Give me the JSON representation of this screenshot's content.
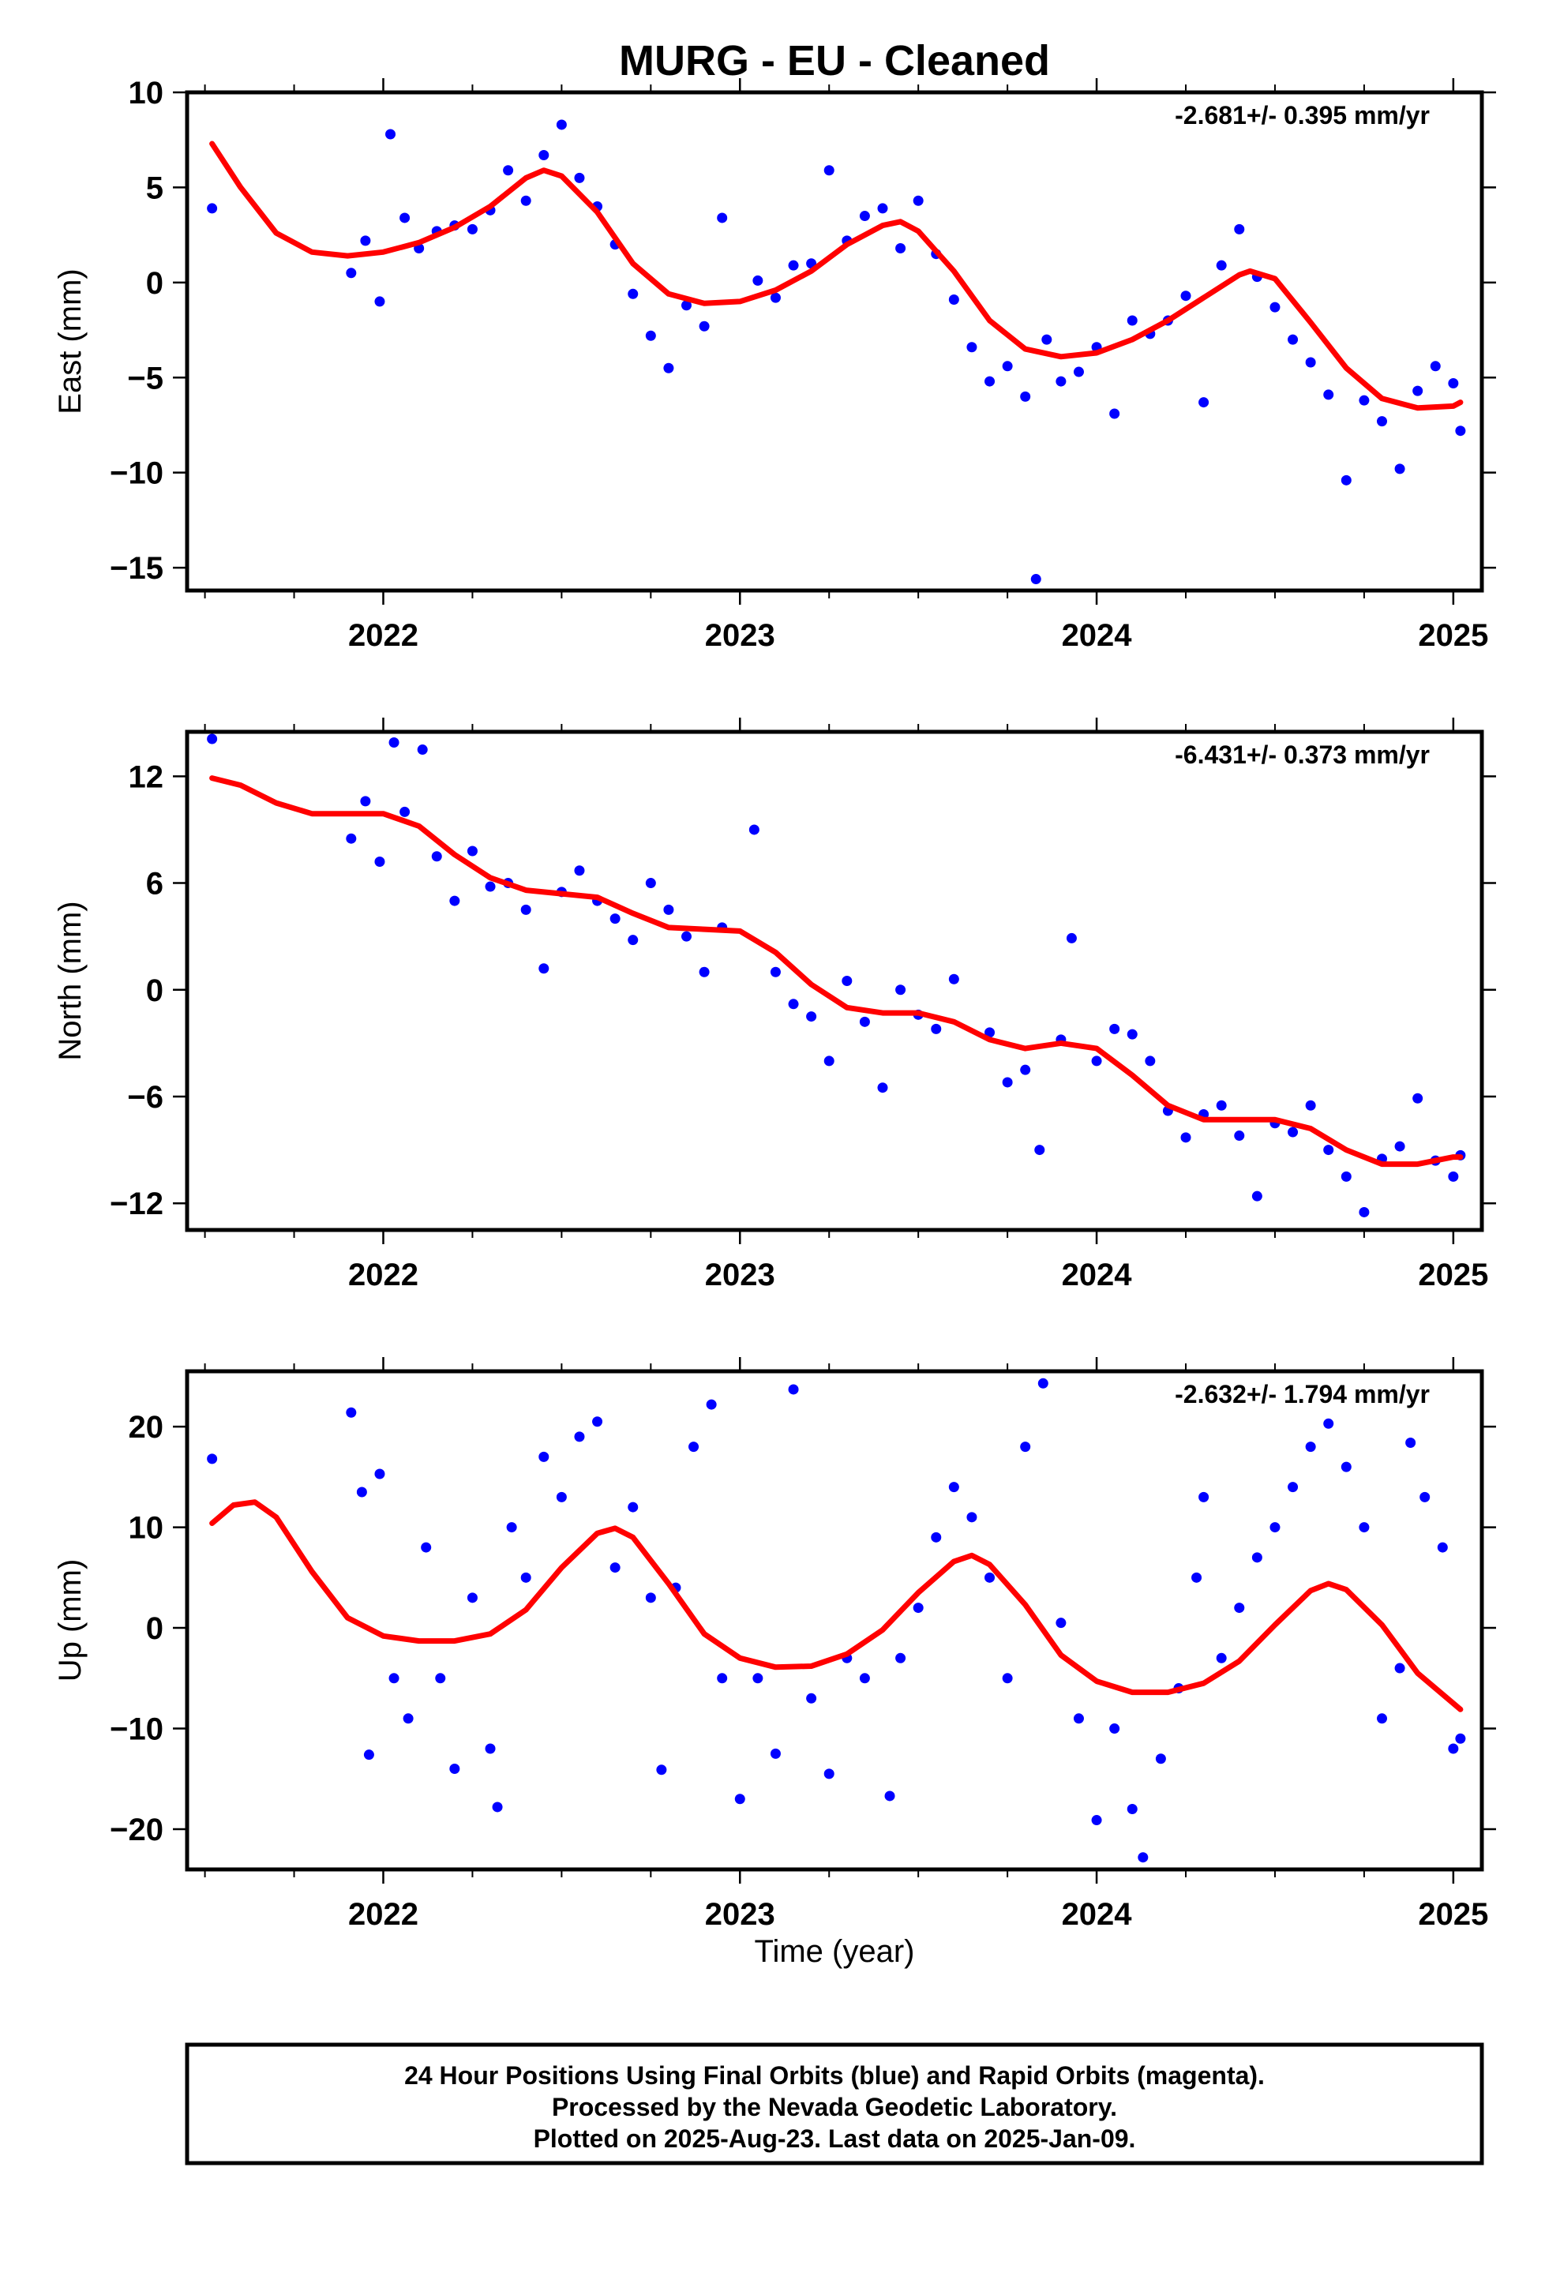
{
  "title": "MURG  - EU - Cleaned",
  "xlabel": "Time (year)",
  "footer": [
    "24 Hour Positions Using Final Orbits (blue) and Rapid Orbits (magenta).",
    "Processed by the Nevada Geodetic Laboratory.",
    "Plotted on 2025-Aug-23. Last data on 2025-Jan-09."
  ],
  "colors": {
    "points": "#0000ff",
    "fit": "#ff0000",
    "frame": "#000000"
  },
  "chart_data": [
    {
      "type": "scatter",
      "name": "east",
      "ylabel": "East (mm)",
      "rate": "-2.681+/- 0.395 mm/yr",
      "xlim": [
        2021.45,
        2025.08
      ],
      "ylim": [
        -16.2,
        10
      ],
      "yticks": [
        10,
        5,
        0,
        -5,
        -10,
        -15
      ],
      "xticks": [
        2022,
        2023,
        2024,
        2025
      ],
      "points": [
        [
          2021.52,
          3.9
        ],
        [
          2021.91,
          0.5
        ],
        [
          2021.95,
          2.2
        ],
        [
          2021.99,
          -1.0
        ],
        [
          2022.02,
          7.8
        ],
        [
          2022.06,
          3.4
        ],
        [
          2022.1,
          1.8
        ],
        [
          2022.15,
          2.7
        ],
        [
          2022.2,
          3.0
        ],
        [
          2022.25,
          2.8
        ],
        [
          2022.3,
          3.8
        ],
        [
          2022.35,
          5.9
        ],
        [
          2022.4,
          4.3
        ],
        [
          2022.45,
          6.7
        ],
        [
          2022.5,
          8.3
        ],
        [
          2022.55,
          5.5
        ],
        [
          2022.6,
          4.0
        ],
        [
          2022.65,
          2.0
        ],
        [
          2022.7,
          -0.6
        ],
        [
          2022.75,
          -2.8
        ],
        [
          2022.8,
          -4.5
        ],
        [
          2022.85,
          -1.2
        ],
        [
          2022.9,
          -2.3
        ],
        [
          2022.95,
          3.4
        ],
        [
          2023.05,
          0.1
        ],
        [
          2023.1,
          -0.8
        ],
        [
          2023.15,
          0.9
        ],
        [
          2023.2,
          1.0
        ],
        [
          2023.25,
          5.9
        ],
        [
          2023.3,
          2.2
        ],
        [
          2023.35,
          3.5
        ],
        [
          2023.4,
          3.9
        ],
        [
          2023.45,
          1.8
        ],
        [
          2023.5,
          4.3
        ],
        [
          2023.55,
          1.5
        ],
        [
          2023.6,
          -0.9
        ],
        [
          2023.65,
          -3.4
        ],
        [
          2023.7,
          -5.2
        ],
        [
          2023.75,
          -4.4
        ],
        [
          2023.8,
          -6.0
        ],
        [
          2023.83,
          -15.6
        ],
        [
          2023.86,
          -3.0
        ],
        [
          2023.9,
          -5.2
        ],
        [
          2023.95,
          -4.7
        ],
        [
          2024.0,
          -3.4
        ],
        [
          2024.05,
          -6.9
        ],
        [
          2024.1,
          -2.0
        ],
        [
          2024.15,
          -2.7
        ],
        [
          2024.2,
          -2.0
        ],
        [
          2024.25,
          -0.7
        ],
        [
          2024.3,
          -6.3
        ],
        [
          2024.35,
          0.9
        ],
        [
          2024.4,
          2.8
        ],
        [
          2024.45,
          0.3
        ],
        [
          2024.5,
          -1.3
        ],
        [
          2024.55,
          -3.0
        ],
        [
          2024.6,
          -4.2
        ],
        [
          2024.65,
          -5.9
        ],
        [
          2024.7,
          -10.4
        ],
        [
          2024.75,
          -6.2
        ],
        [
          2024.8,
          -7.3
        ],
        [
          2024.85,
          -9.8
        ],
        [
          2024.9,
          -5.7
        ],
        [
          2024.95,
          -4.4
        ],
        [
          2025.0,
          -5.3
        ],
        [
          2025.02,
          -7.8
        ]
      ],
      "fit": [
        [
          2021.52,
          7.3
        ],
        [
          2021.6,
          5.0
        ],
        [
          2021.7,
          2.6
        ],
        [
          2021.8,
          1.6
        ],
        [
          2021.9,
          1.4
        ],
        [
          2022.0,
          1.6
        ],
        [
          2022.1,
          2.1
        ],
        [
          2022.2,
          2.9
        ],
        [
          2022.3,
          4.0
        ],
        [
          2022.4,
          5.5
        ],
        [
          2022.45,
          5.9
        ],
        [
          2022.5,
          5.6
        ],
        [
          2022.6,
          3.7
        ],
        [
          2022.7,
          1.0
        ],
        [
          2022.8,
          -0.6
        ],
        [
          2022.9,
          -1.1
        ],
        [
          2023.0,
          -1.0
        ],
        [
          2023.1,
          -0.4
        ],
        [
          2023.2,
          0.6
        ],
        [
          2023.3,
          2.0
        ],
        [
          2023.4,
          3.0
        ],
        [
          2023.45,
          3.2
        ],
        [
          2023.5,
          2.7
        ],
        [
          2023.6,
          0.6
        ],
        [
          2023.7,
          -2.0
        ],
        [
          2023.8,
          -3.5
        ],
        [
          2023.9,
          -3.9
        ],
        [
          2024.0,
          -3.7
        ],
        [
          2024.1,
          -3.0
        ],
        [
          2024.2,
          -2.0
        ],
        [
          2024.3,
          -0.8
        ],
        [
          2024.4,
          0.4
        ],
        [
          2024.43,
          0.6
        ],
        [
          2024.5,
          0.2
        ],
        [
          2024.6,
          -2.1
        ],
        [
          2024.7,
          -4.5
        ],
        [
          2024.8,
          -6.1
        ],
        [
          2024.9,
          -6.6
        ],
        [
          2025.0,
          -6.5
        ],
        [
          2025.02,
          -6.3
        ]
      ]
    },
    {
      "type": "scatter",
      "name": "north",
      "ylabel": "North (mm)",
      "rate": "-6.431+/- 0.373 mm/yr",
      "xlim": [
        2021.45,
        2025.08
      ],
      "ylim": [
        -13.5,
        14.5
      ],
      "yticks": [
        12,
        6,
        0,
        -6,
        -12
      ],
      "xticks": [
        2022,
        2023,
        2024,
        2025
      ],
      "points": [
        [
          2021.52,
          14.1
        ],
        [
          2021.91,
          8.5
        ],
        [
          2021.95,
          10.6
        ],
        [
          2021.99,
          7.2
        ],
        [
          2022.03,
          13.9
        ],
        [
          2022.06,
          10.0
        ],
        [
          2022.11,
          13.5
        ],
        [
          2022.15,
          7.5
        ],
        [
          2022.2,
          5.0
        ],
        [
          2022.25,
          7.8
        ],
        [
          2022.3,
          5.8
        ],
        [
          2022.35,
          6.0
        ],
        [
          2022.4,
          4.5
        ],
        [
          2022.45,
          1.2
        ],
        [
          2022.5,
          5.5
        ],
        [
          2022.55,
          6.7
        ],
        [
          2022.6,
          5.0
        ],
        [
          2022.65,
          4.0
        ],
        [
          2022.7,
          2.8
        ],
        [
          2022.75,
          6.0
        ],
        [
          2022.8,
          4.5
        ],
        [
          2022.85,
          3.0
        ],
        [
          2022.9,
          1.0
        ],
        [
          2022.95,
          3.5
        ],
        [
          2023.04,
          9.0
        ],
        [
          2023.1,
          1.0
        ],
        [
          2023.15,
          -0.8
        ],
        [
          2023.2,
          -1.5
        ],
        [
          2023.25,
          -4.0
        ],
        [
          2023.3,
          0.5
        ],
        [
          2023.35,
          -1.8
        ],
        [
          2023.4,
          -5.5
        ],
        [
          2023.45,
          0.0
        ],
        [
          2023.5,
          -1.4
        ],
        [
          2023.55,
          -2.2
        ],
        [
          2023.6,
          0.6
        ],
        [
          2023.7,
          -2.4
        ],
        [
          2023.75,
          -5.2
        ],
        [
          2023.8,
          -4.5
        ],
        [
          2023.84,
          -9.0
        ],
        [
          2023.9,
          -2.8
        ],
        [
          2023.93,
          2.9
        ],
        [
          2024.0,
          -4.0
        ],
        [
          2024.05,
          -2.2
        ],
        [
          2024.1,
          -2.5
        ],
        [
          2024.15,
          -4.0
        ],
        [
          2024.2,
          -6.8
        ],
        [
          2024.25,
          -8.3
        ],
        [
          2024.3,
          -7.0
        ],
        [
          2024.35,
          -6.5
        ],
        [
          2024.4,
          -8.2
        ],
        [
          2024.45,
          -11.6
        ],
        [
          2024.5,
          -7.5
        ],
        [
          2024.55,
          -8.0
        ],
        [
          2024.6,
          -6.5
        ],
        [
          2024.65,
          -9.0
        ],
        [
          2024.7,
          -10.5
        ],
        [
          2024.75,
          -12.5
        ],
        [
          2024.8,
          -9.5
        ],
        [
          2024.85,
          -8.8
        ],
        [
          2024.9,
          -6.1
        ],
        [
          2024.95,
          -9.6
        ],
        [
          2025.0,
          -10.5
        ],
        [
          2025.02,
          -9.3
        ]
      ],
      "fit": [
        [
          2021.52,
          11.9
        ],
        [
          2021.6,
          11.5
        ],
        [
          2021.7,
          10.5
        ],
        [
          2021.8,
          9.9
        ],
        [
          2021.9,
          9.9
        ],
        [
          2022.0,
          9.9
        ],
        [
          2022.1,
          9.2
        ],
        [
          2022.2,
          7.6
        ],
        [
          2022.3,
          6.3
        ],
        [
          2022.4,
          5.6
        ],
        [
          2022.5,
          5.4
        ],
        [
          2022.6,
          5.2
        ],
        [
          2022.7,
          4.3
        ],
        [
          2022.8,
          3.5
        ],
        [
          2022.9,
          3.4
        ],
        [
          2023.0,
          3.3
        ],
        [
          2023.1,
          2.1
        ],
        [
          2023.2,
          0.3
        ],
        [
          2023.3,
          -1.0
        ],
        [
          2023.4,
          -1.3
        ],
        [
          2023.5,
          -1.3
        ],
        [
          2023.6,
          -1.8
        ],
        [
          2023.7,
          -2.8
        ],
        [
          2023.8,
          -3.3
        ],
        [
          2023.9,
          -3.0
        ],
        [
          2024.0,
          -3.3
        ],
        [
          2024.1,
          -4.8
        ],
        [
          2024.2,
          -6.5
        ],
        [
          2024.3,
          -7.3
        ],
        [
          2024.4,
          -7.3
        ],
        [
          2024.5,
          -7.3
        ],
        [
          2024.6,
          -7.8
        ],
        [
          2024.7,
          -9.0
        ],
        [
          2024.8,
          -9.8
        ],
        [
          2024.9,
          -9.8
        ],
        [
          2025.0,
          -9.4
        ],
        [
          2025.02,
          -9.4
        ]
      ]
    },
    {
      "type": "scatter",
      "name": "up",
      "ylabel": "Up (mm)",
      "rate": "-2.632+/- 1.794 mm/yr",
      "xlim": [
        2021.45,
        2025.08
      ],
      "ylim": [
        -24,
        25.5
      ],
      "yticks": [
        20,
        10,
        0,
        -10,
        -20
      ],
      "xticks": [
        2022,
        2023,
        2024,
        2025
      ],
      "points": [
        [
          2021.52,
          16.8
        ],
        [
          2021.91,
          21.4
        ],
        [
          2021.94,
          13.5
        ],
        [
          2021.96,
          -12.6
        ],
        [
          2021.99,
          15.3
        ],
        [
          2022.03,
          -5.0
        ],
        [
          2022.07,
          -9.0
        ],
        [
          2022.12,
          8.0
        ],
        [
          2022.16,
          -5.0
        ],
        [
          2022.2,
          -14.0
        ],
        [
          2022.25,
          3.0
        ],
        [
          2022.3,
          -12.0
        ],
        [
          2022.32,
          -17.8
        ],
        [
          2022.36,
          10.0
        ],
        [
          2022.4,
          5.0
        ],
        [
          2022.45,
          17.0
        ],
        [
          2022.5,
          13.0
        ],
        [
          2022.55,
          19.0
        ],
        [
          2022.6,
          20.5
        ],
        [
          2022.65,
          6.0
        ],
        [
          2022.7,
          12.0
        ],
        [
          2022.75,
          3.0
        ],
        [
          2022.78,
          -14.1
        ],
        [
          2022.82,
          4.0
        ],
        [
          2022.87,
          18.0
        ],
        [
          2022.92,
          22.2
        ],
        [
          2022.95,
          -5.0
        ],
        [
          2023.0,
          -17.0
        ],
        [
          2023.05,
          -5.0
        ],
        [
          2023.1,
          -12.5
        ],
        [
          2023.15,
          23.7
        ],
        [
          2023.2,
          -7.0
        ],
        [
          2023.25,
          -14.5
        ],
        [
          2023.3,
          -3.0
        ],
        [
          2023.35,
          -5.0
        ],
        [
          2023.42,
          -16.7
        ],
        [
          2023.45,
          -3.0
        ],
        [
          2023.5,
          2.0
        ],
        [
          2023.55,
          9.0
        ],
        [
          2023.6,
          14.0
        ],
        [
          2023.65,
          11.0
        ],
        [
          2023.7,
          5.0
        ],
        [
          2023.75,
          -5.0
        ],
        [
          2023.8,
          18.0
        ],
        [
          2023.85,
          24.3
        ],
        [
          2023.9,
          0.5
        ],
        [
          2023.95,
          -9.0
        ],
        [
          2024.0,
          -19.1
        ],
        [
          2024.05,
          -10.0
        ],
        [
          2024.1,
          -18.0
        ],
        [
          2024.13,
          -22.8
        ],
        [
          2024.18,
          -13.0
        ],
        [
          2024.23,
          -6.0
        ],
        [
          2024.28,
          5.0
        ],
        [
          2024.3,
          13.0
        ],
        [
          2024.35,
          -3.0
        ],
        [
          2024.4,
          2.0
        ],
        [
          2024.45,
          7.0
        ],
        [
          2024.5,
          10.0
        ],
        [
          2024.55,
          14.0
        ],
        [
          2024.6,
          18.0
        ],
        [
          2024.65,
          20.3
        ],
        [
          2024.7,
          16.0
        ],
        [
          2024.75,
          10.0
        ],
        [
          2024.8,
          -9.0
        ],
        [
          2024.85,
          -4.0
        ],
        [
          2024.88,
          18.4
        ],
        [
          2024.92,
          13.0
        ],
        [
          2024.97,
          8.0
        ],
        [
          2025.0,
          -12.0
        ],
        [
          2025.02,
          -11.0
        ]
      ],
      "fit": [
        [
          2021.52,
          10.4
        ],
        [
          2021.58,
          12.2
        ],
        [
          2021.64,
          12.5
        ],
        [
          2021.7,
          11.0
        ],
        [
          2021.8,
          5.6
        ],
        [
          2021.9,
          1.0
        ],
        [
          2022.0,
          -0.8
        ],
        [
          2022.1,
          -1.3
        ],
        [
          2022.2,
          -1.3
        ],
        [
          2022.3,
          -0.6
        ],
        [
          2022.4,
          1.8
        ],
        [
          2022.5,
          6.0
        ],
        [
          2022.6,
          9.4
        ],
        [
          2022.65,
          9.9
        ],
        [
          2022.7,
          9.0
        ],
        [
          2022.8,
          4.4
        ],
        [
          2022.9,
          -0.6
        ],
        [
          2023.0,
          -3.0
        ],
        [
          2023.1,
          -3.9
        ],
        [
          2023.2,
          -3.8
        ],
        [
          2023.3,
          -2.6
        ],
        [
          2023.4,
          -0.2
        ],
        [
          2023.5,
          3.5
        ],
        [
          2023.6,
          6.6
        ],
        [
          2023.65,
          7.2
        ],
        [
          2023.7,
          6.3
        ],
        [
          2023.8,
          2.3
        ],
        [
          2023.9,
          -2.7
        ],
        [
          2024.0,
          -5.3
        ],
        [
          2024.1,
          -6.4
        ],
        [
          2024.2,
          -6.4
        ],
        [
          2024.3,
          -5.5
        ],
        [
          2024.4,
          -3.3
        ],
        [
          2024.5,
          0.3
        ],
        [
          2024.6,
          3.7
        ],
        [
          2024.65,
          4.4
        ],
        [
          2024.7,
          3.8
        ],
        [
          2024.8,
          0.3
        ],
        [
          2024.9,
          -4.5
        ],
        [
          2025.0,
          -7.5
        ],
        [
          2025.02,
          -8.1
        ]
      ]
    }
  ]
}
